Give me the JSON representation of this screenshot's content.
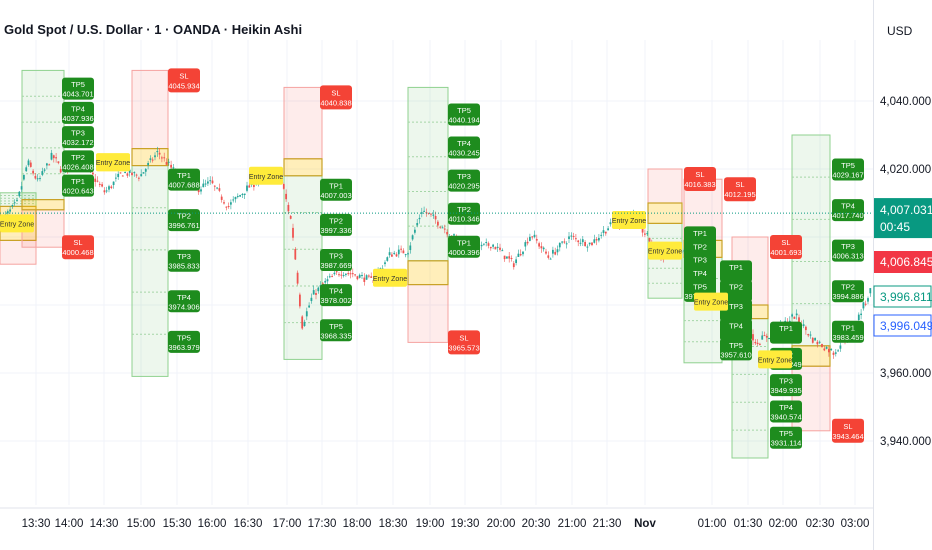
{
  "header": {
    "title": "Gold Spot / U.S. Dollar · 1 · OANDA · Heikin Ashi",
    "currency": "USD"
  },
  "price_axis": {
    "ticks": [
      "4,040.000",
      "4,020.000",
      "3,960.000",
      "3,940.000"
    ],
    "last_price": "4,007.031",
    "countdown": "00:45",
    "bid": "4,006.845",
    "level_a": "3,996.811",
    "level_b": "3,996.049"
  },
  "time_axis": {
    "ticks": [
      "13:30",
      "14:00",
      "14:30",
      "15:00",
      "15:30",
      "16:00",
      "16:30",
      "17:00",
      "17:30",
      "18:00",
      "18:30",
      "19:00",
      "19:30",
      "20:00",
      "20:30",
      "21:00",
      "21:30",
      "Nov",
      "01:00",
      "01:30",
      "02:00",
      "02:30",
      "03:00"
    ]
  },
  "colors": {
    "up": "#26a69a",
    "down": "#ef5350",
    "tp_label": "#1e8c1e",
    "sl_label": "#f44336",
    "entry_label": "#ffeb3b",
    "last_price_bg": "#089981",
    "bid_bg": "#f23645"
  },
  "chart_data": {
    "type": "candlestick",
    "style": "Heikin Ashi",
    "symbol": "XAUUSD",
    "timeframe": "1",
    "ylim": [
      3930,
      4055
    ],
    "grid": true,
    "current_price": 4007.031,
    "price_path": [
      [
        13.0,
        4004
      ],
      [
        13.25,
        4010
      ],
      [
        13.4,
        4022
      ],
      [
        13.55,
        4016
      ],
      [
        13.75,
        4024
      ],
      [
        13.9,
        4019
      ],
      [
        14.05,
        4023
      ],
      [
        14.25,
        4020
      ],
      [
        14.5,
        4013
      ],
      [
        14.75,
        4019
      ],
      [
        15.0,
        4018
      ],
      [
        15.25,
        4025
      ],
      [
        15.45,
        4020
      ],
      [
        15.6,
        4017
      ],
      [
        15.8,
        4014
      ],
      [
        16.0,
        4016
      ],
      [
        16.25,
        4009
      ],
      [
        16.5,
        4014
      ],
      [
        16.75,
        4018
      ],
      [
        17.0,
        4017
      ],
      [
        17.15,
        4004
      ],
      [
        17.3,
        3974
      ],
      [
        17.45,
        3983
      ],
      [
        17.65,
        3987
      ],
      [
        17.85,
        3990
      ],
      [
        18.05,
        3989
      ],
      [
        18.3,
        3987
      ],
      [
        18.55,
        3995
      ],
      [
        18.8,
        3996
      ],
      [
        19.0,
        4008
      ],
      [
        19.2,
        4005
      ],
      [
        19.45,
        4000
      ],
      [
        19.7,
        3996
      ],
      [
        20.0,
        3998
      ],
      [
        20.3,
        3992
      ],
      [
        20.55,
        4001
      ],
      [
        20.8,
        3994
      ],
      [
        21.1,
        4000
      ],
      [
        21.4,
        3998
      ],
      [
        21.65,
        4003
      ],
      [
        22.0,
        4006
      ],
      [
        22.4,
        3994
      ],
      [
        22.7,
        3996
      ],
      [
        23.0,
        3989
      ],
      [
        23.25,
        3980
      ],
      [
        23.5,
        3978
      ],
      [
        23.75,
        3969
      ],
      [
        24.0,
        3972
      ],
      [
        24.3,
        3977
      ],
      [
        24.55,
        3970
      ],
      [
        24.85,
        3966
      ],
      [
        25.15,
        3974
      ],
      [
        25.45,
        3988
      ],
      [
        25.75,
        3998
      ],
      [
        26.0,
        4007
      ]
    ],
    "signals": [
      {
        "entry_label": "Entry Zone",
        "tp": [
          "TP1",
          "TP2",
          "TP3",
          "TP4",
          "TP5"
        ],
        "tp_values": [
          "",
          "",
          "",
          "",
          ""
        ],
        "sl": "SL",
        "sl_value": ""
      },
      {
        "entry_label": "Entry Zone",
        "tp": [
          "TP1",
          "TP2",
          "TP3",
          "TP4",
          "TP5"
        ],
        "tp_values": [
          "4020.643",
          "4026.408",
          "4032.172",
          "4037.936",
          "4043.701"
        ],
        "sl": "SL",
        "sl_value": "4000.468"
      },
      {
        "entry_label": "Entry Zone",
        "tp": [
          "TP1",
          "TP2",
          "TP3",
          "TP4",
          "TP5"
        ],
        "tp_values": [
          "4007.688",
          "3996.761",
          "3985.833",
          "3974.906",
          "3963.979"
        ],
        "sl": "SL",
        "sl_value": "4045.934"
      },
      {
        "entry_label": "Entry Zone",
        "tp": [
          "TP1",
          "TP2",
          "TP3",
          "TP4",
          "TP5"
        ],
        "tp_values": [
          "4007.003",
          "3997.336",
          "3987.669",
          "3978.002",
          "3968.335"
        ],
        "sl": "SL",
        "sl_value": "4040.838"
      },
      {
        "entry_label": "Entry Zone",
        "tp": [
          "TP1",
          "TP2",
          "TP3",
          "TP4",
          "TP5"
        ],
        "tp_values": [
          "4000.396",
          "4010.346",
          "4020.295",
          "4030.245",
          "4040.194"
        ],
        "sl": "SL",
        "sl_value": "3965.573"
      },
      {
        "entry_label": "Entry Zone",
        "tp": [
          "TP1",
          "TP2",
          "TP3",
          "TP4",
          "TP5"
        ],
        "tp_values": [
          "",
          "",
          "",
          "",
          "3975.618"
        ],
        "sl": "SL",
        "sl_value": "4016.383"
      },
      {
        "entry_label": "Entry Zone",
        "tp": [
          "TP1",
          "TP2",
          "TP3",
          "TP4",
          "TP5"
        ],
        "tp_values": [
          "",
          "",
          "",
          "",
          "3957.610"
        ],
        "sl": "SL",
        "sl_value": "4012.195"
      },
      {
        "entry_label": "Entry Zone",
        "tp": [
          "TP1",
          "TP2",
          "TP3",
          "TP4",
          "TP5"
        ],
        "tp_values": [
          "",
          "3959.249",
          "3949.935",
          "3940.574",
          "3931.114"
        ],
        "sl": "SL",
        "sl_value": "4001.693"
      },
      {
        "entry_label": "Entry Zone",
        "tp": [
          "TP1",
          "TP2",
          "TP3",
          "TP4",
          "TP5"
        ],
        "tp_values": [
          "3983.459",
          "3994.886",
          "4006.313",
          "4017.740",
          "4029.167"
        ],
        "sl": "SL",
        "sl_value": "3943.464"
      }
    ]
  }
}
